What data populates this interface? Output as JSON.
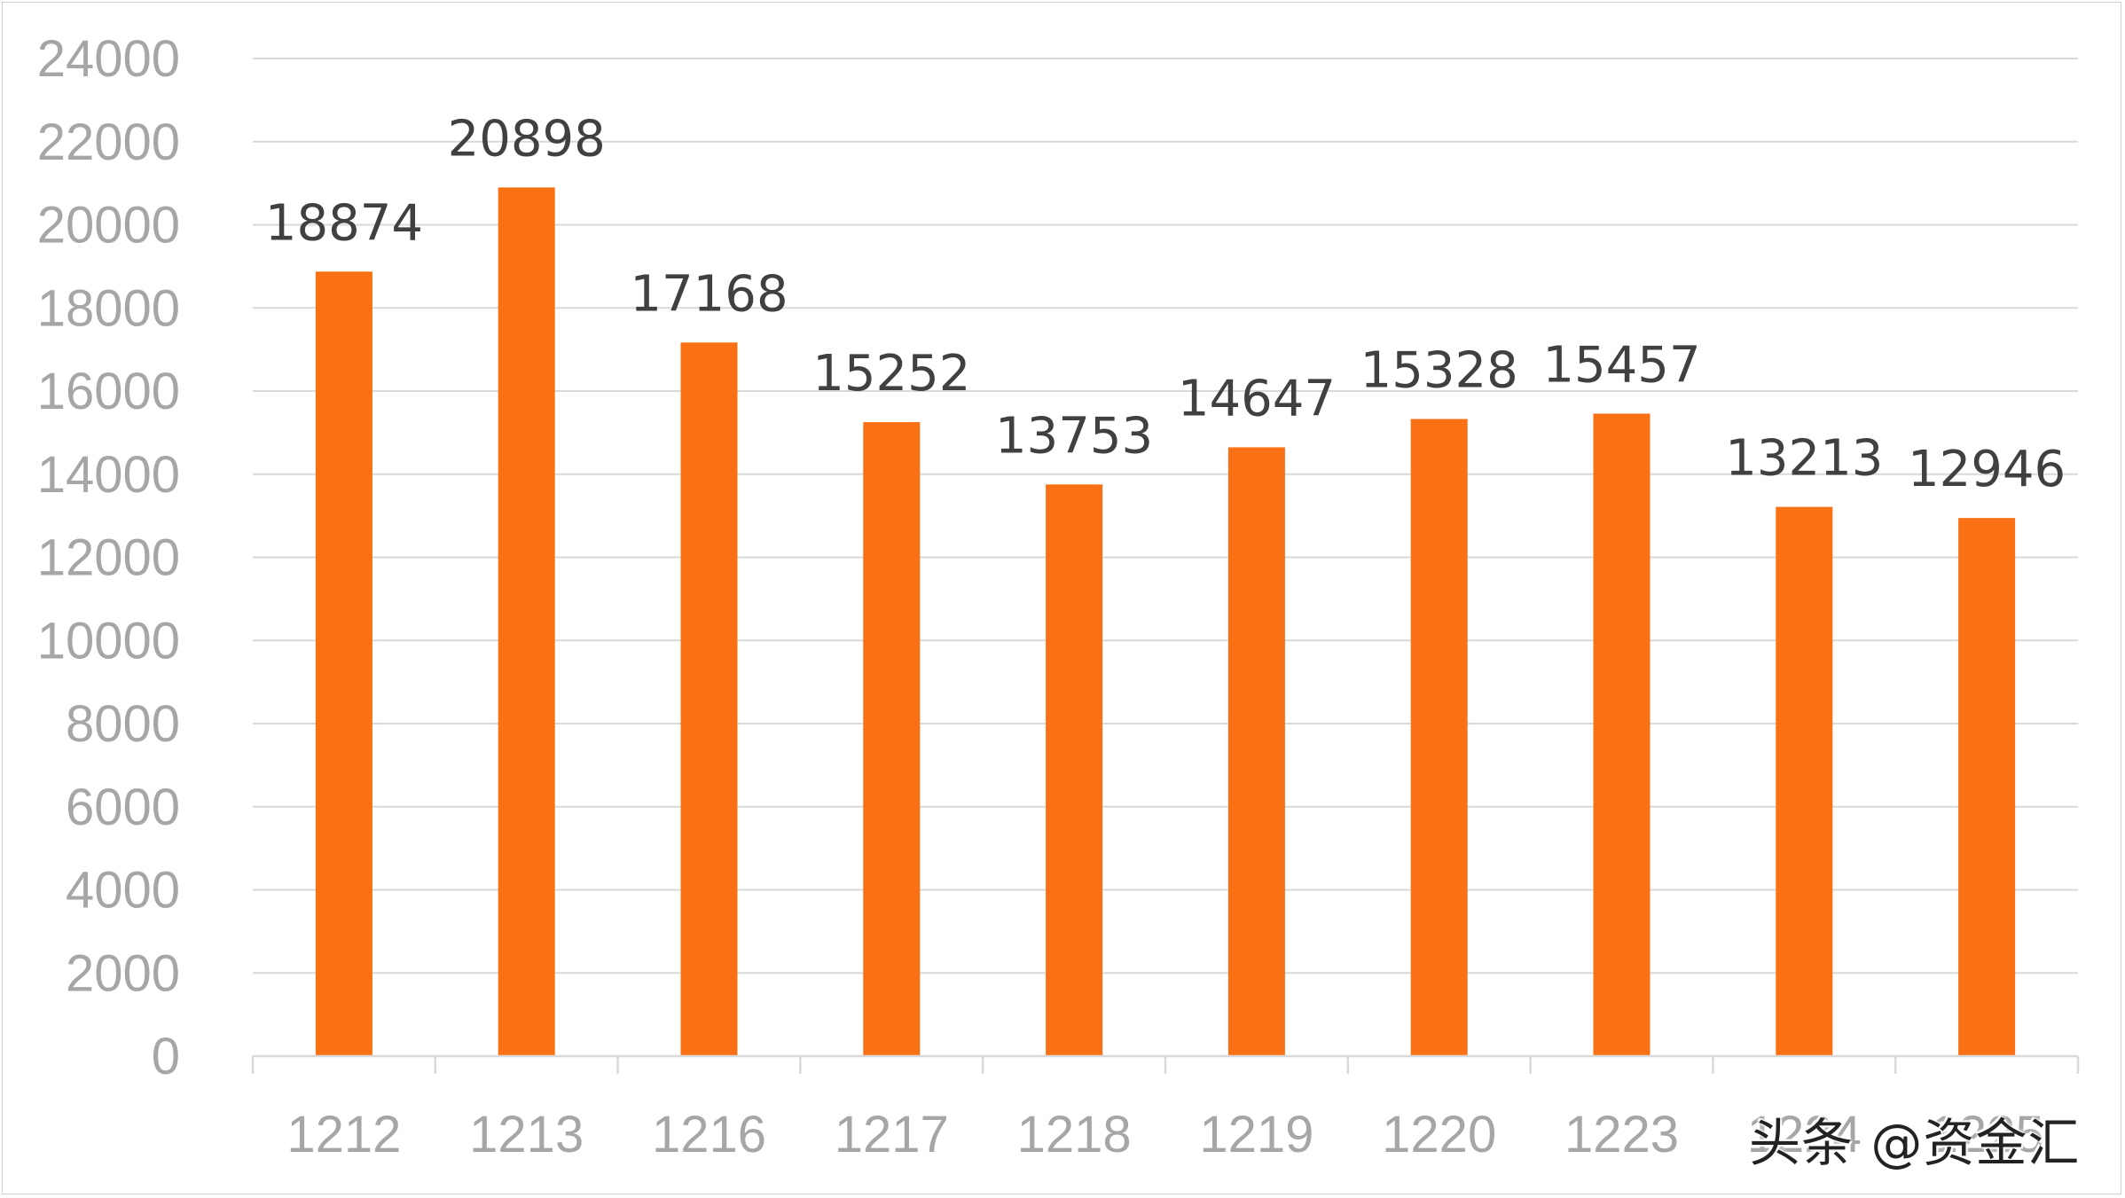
{
  "chart_data": {
    "type": "bar",
    "categories": [
      "1212",
      "1213",
      "1216",
      "1217",
      "1218",
      "1219",
      "1220",
      "1223",
      "1224",
      "1225"
    ],
    "values": [
      18874,
      20898,
      17168,
      15252,
      13753,
      14647,
      15328,
      15457,
      13213,
      12946
    ],
    "data_labels": [
      "18874",
      "20898",
      "17168",
      "15252",
      "13753",
      "14647",
      "15328",
      "15457",
      "13213",
      "12946"
    ],
    "yticks": [
      "0",
      "2000",
      "4000",
      "6000",
      "8000",
      "10000",
      "12000",
      "14000",
      "16000",
      "18000",
      "20000",
      "22000",
      "24000"
    ],
    "ylim": [
      0,
      24000
    ],
    "grid": true,
    "legend": "none",
    "bar_color": "#fa7014",
    "grid_color": "#d9d9d9",
    "tick_color": "#a6a6a6",
    "label_color": "#404040"
  },
  "watermark": "头条 @资金汇"
}
